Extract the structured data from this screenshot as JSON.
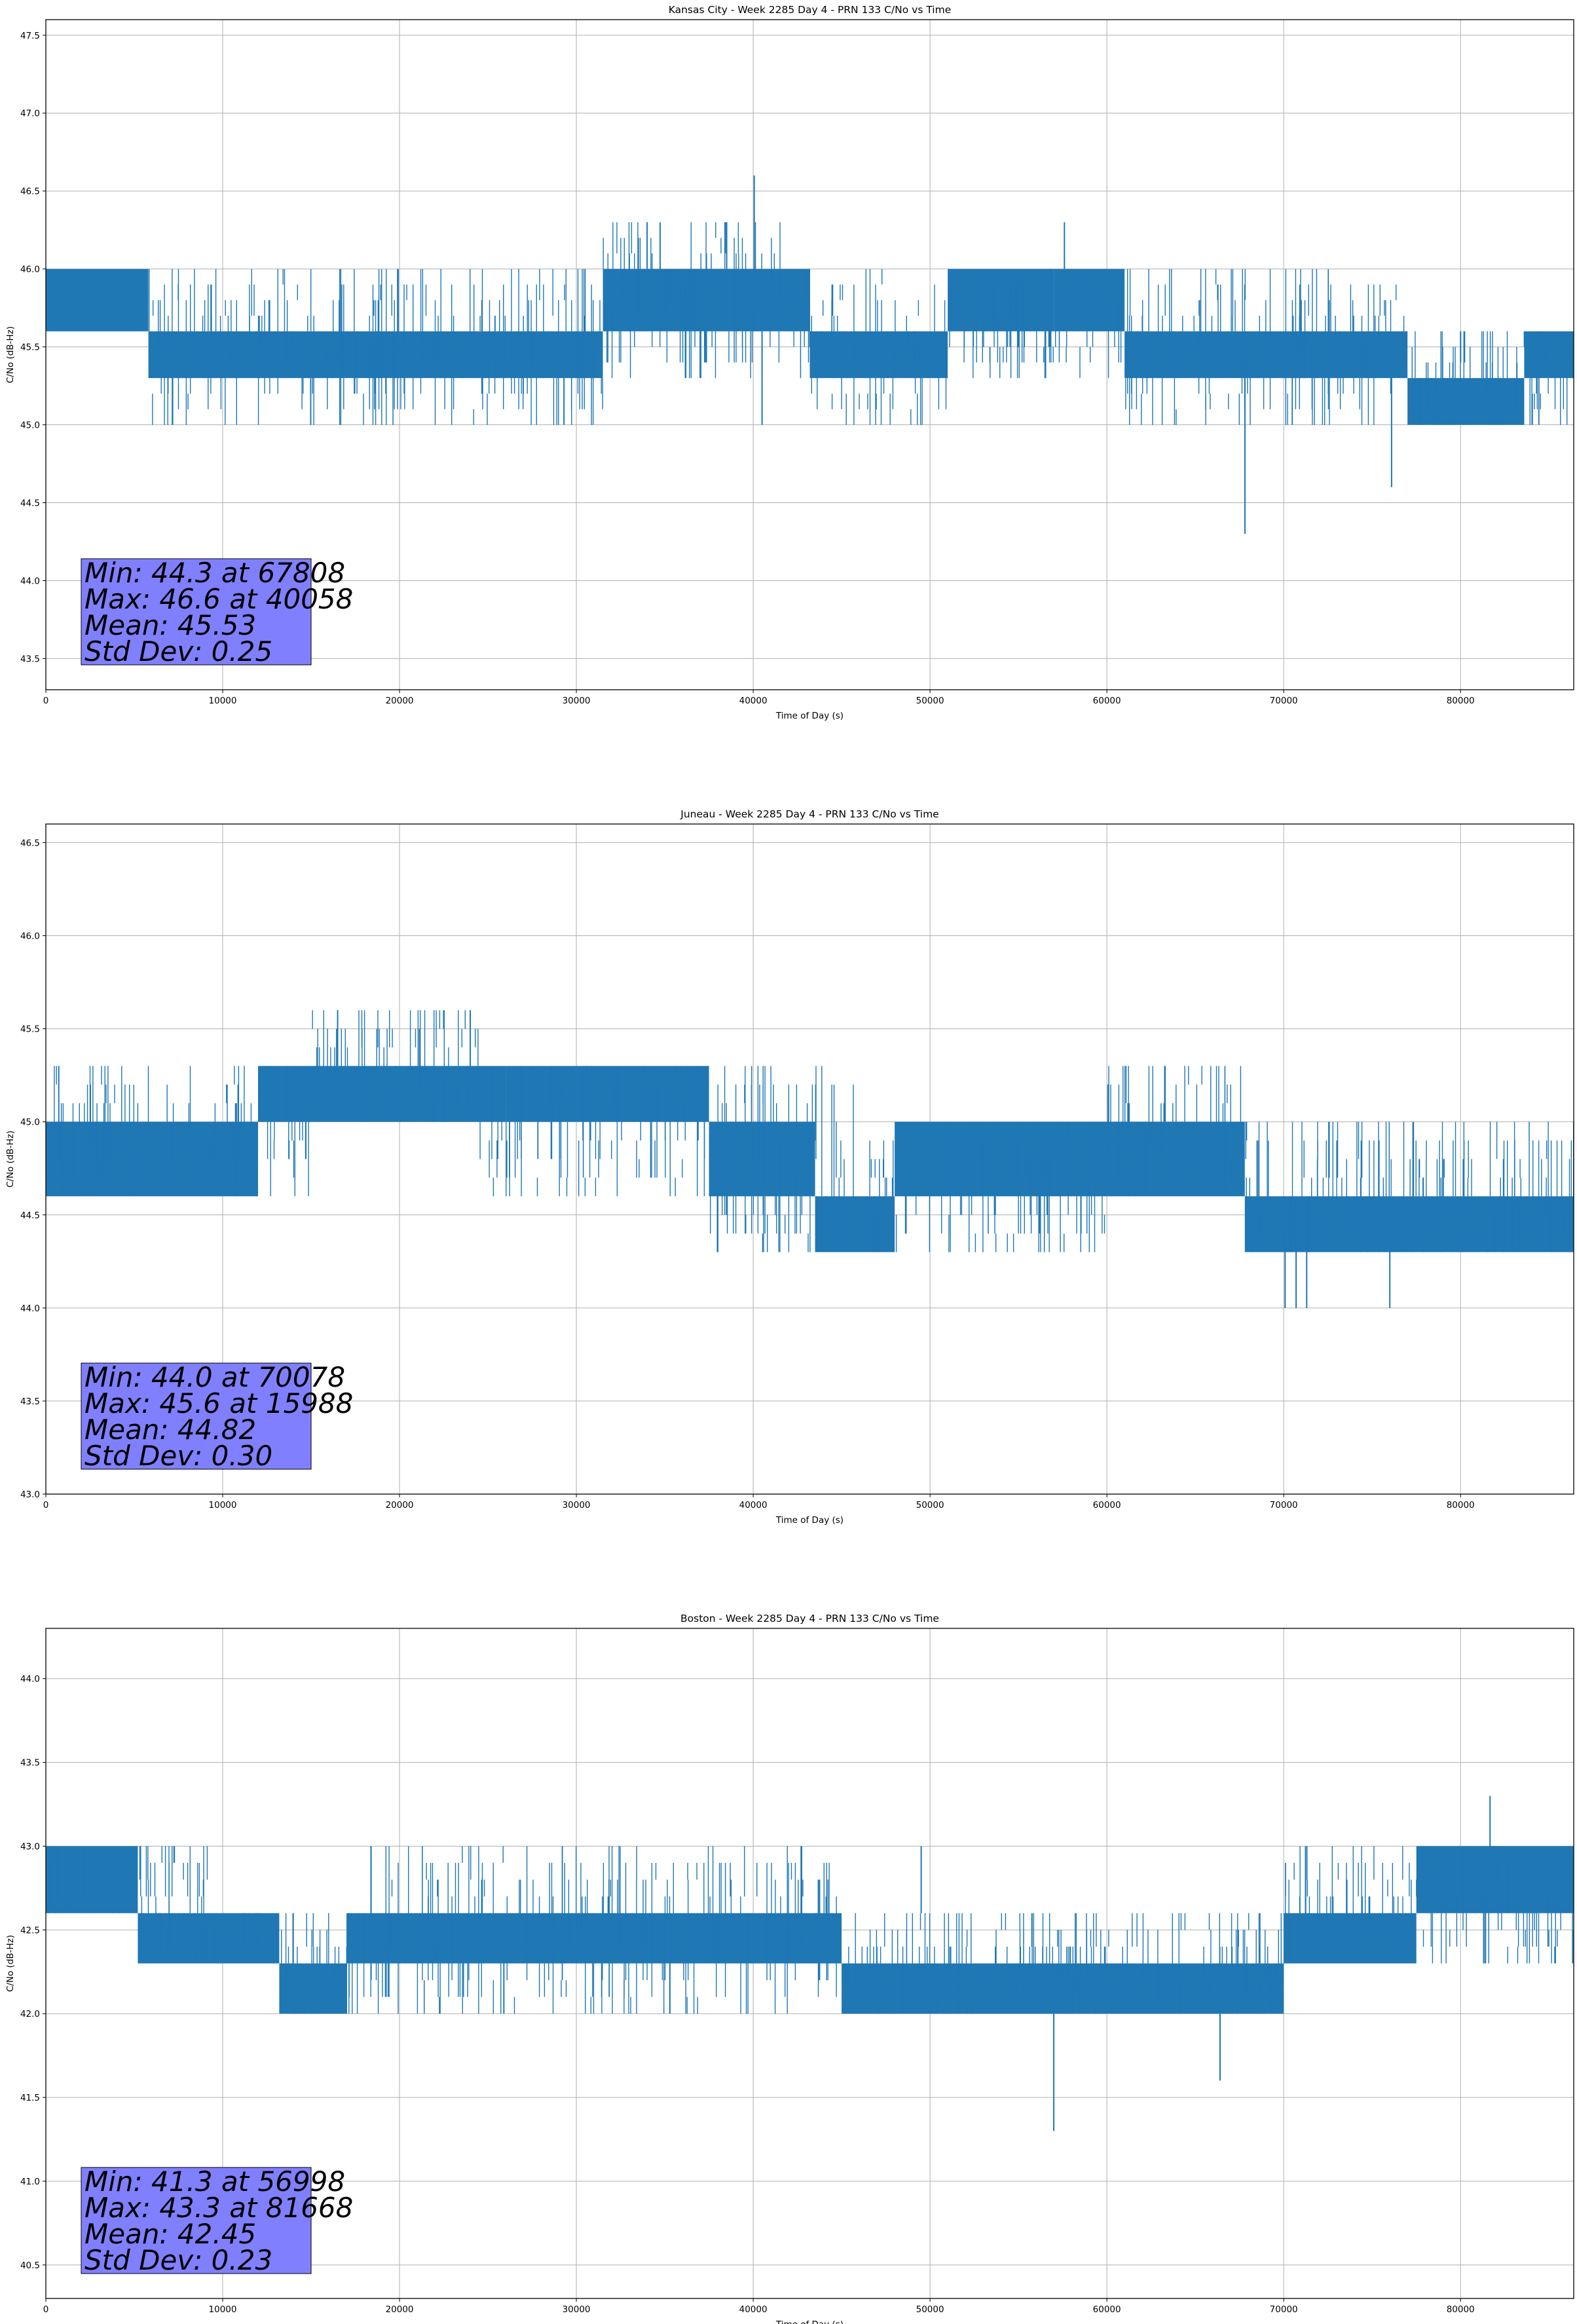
{
  "chart_data": [
    {
      "type": "line",
      "title": "Kansas City - Week 2285 Day 4 - PRN 133 C/No vs Time",
      "xlabel": "Time of Day (s)",
      "ylabel": "C/No (dB-Hz)",
      "xlim": [
        0,
        86400
      ],
      "ylim": [
        43.3,
        47.6
      ],
      "xticks": [
        0,
        10000,
        20000,
        30000,
        40000,
        50000,
        60000,
        70000,
        80000
      ],
      "yticks": [
        43.5,
        44.0,
        44.5,
        45.0,
        45.5,
        46.0,
        46.5,
        47.0,
        47.5
      ],
      "grid": true,
      "color": "#1f77b4",
      "stats": [
        "Min: 44.3 at 67808",
        "Max: 46.6 at 40058",
        "Mean: 45.53",
        "Std Dev: 0.25"
      ],
      "bands": [
        {
          "x": [
            0,
            5800
          ],
          "low": 45.6,
          "high": 46.0
        },
        {
          "x": [
            5800,
            15000
          ],
          "low": 45.3,
          "high": 45.6
        },
        {
          "x": [
            15000,
            31500
          ],
          "low": 45.3,
          "high": 45.6
        },
        {
          "x": [
            31500,
            43200
          ],
          "low": 45.6,
          "high": 46.0
        },
        {
          "x": [
            43200,
            51000
          ],
          "low": 45.3,
          "high": 45.6
        },
        {
          "x": [
            51000,
            57000
          ],
          "low": 45.6,
          "high": 46.0
        },
        {
          "x": [
            57000,
            61000
          ],
          "low": 45.6,
          "high": 46.0
        },
        {
          "x": [
            61000,
            77000
          ],
          "low": 45.3,
          "high": 45.6
        },
        {
          "x": [
            77000,
            83600
          ],
          "low": 45.0,
          "high": 45.3
        },
        {
          "x": [
            83600,
            86400
          ],
          "low": 45.3,
          "high": 45.6
        }
      ],
      "spikes": [
        {
          "x": 40058,
          "low": 45.6,
          "high": 46.6
        },
        {
          "x": 67808,
          "low": 44.3,
          "high": 45.3
        },
        {
          "x": 76100,
          "low": 44.6,
          "high": 45.3
        },
        {
          "x": 40500,
          "low": 45.0,
          "high": 45.6
        },
        {
          "x": 29300,
          "low": 45.0,
          "high": 45.3
        },
        {
          "x": 34000,
          "low": 46.0,
          "high": 46.3
        },
        {
          "x": 38500,
          "low": 46.0,
          "high": 46.3
        },
        {
          "x": 57600,
          "low": 46.0,
          "high": 46.3
        }
      ],
      "scatter": [
        {
          "x": [
            5800,
            15000
          ],
          "low": 45.0,
          "high": 46.0
        },
        {
          "x": [
            15000,
            31500
          ],
          "low": 45.0,
          "high": 46.0
        },
        {
          "x": [
            31500,
            43200
          ],
          "low": 45.3,
          "high": 46.3
        },
        {
          "x": [
            43200,
            51000
          ],
          "low": 45.0,
          "high": 46.0
        },
        {
          "x": [
            51000,
            61000
          ],
          "low": 45.3,
          "high": 46.0
        },
        {
          "x": [
            61000,
            77000
          ],
          "low": 45.0,
          "high": 46.0
        },
        {
          "x": [
            77000,
            86400
          ],
          "low": 45.0,
          "high": 45.6
        }
      ]
    },
    {
      "type": "line",
      "title": "Juneau - Week 2285 Day 4 - PRN 133 C/No vs Time",
      "xlabel": "Time of Day (s)",
      "ylabel": "C/No (dB-Hz)",
      "xlim": [
        0,
        86400
      ],
      "ylim": [
        43.0,
        46.6
      ],
      "xticks": [
        0,
        10000,
        20000,
        30000,
        40000,
        50000,
        60000,
        70000,
        80000
      ],
      "yticks": [
        43.0,
        43.5,
        44.0,
        44.5,
        45.0,
        45.5,
        46.0,
        46.5
      ],
      "grid": true,
      "color": "#1f77b4",
      "stats": [
        "Min: 44.0 at 70078",
        "Max: 45.6 at 15988",
        "Mean: 44.82",
        "Std Dev: 0.30"
      ],
      "bands": [
        {
          "x": [
            0,
            12000
          ],
          "low": 44.6,
          "high": 45.0
        },
        {
          "x": [
            12000,
            26000
          ],
          "low": 45.0,
          "high": 45.3
        },
        {
          "x": [
            26000,
            37500
          ],
          "low": 45.0,
          "high": 45.3
        },
        {
          "x": [
            37500,
            43500
          ],
          "low": 44.6,
          "high": 45.0
        },
        {
          "x": [
            43500,
            48000
          ],
          "low": 44.3,
          "high": 44.6
        },
        {
          "x": [
            48000,
            67800
          ],
          "low": 44.6,
          "high": 45.0
        },
        {
          "x": [
            67800,
            86400
          ],
          "low": 44.3,
          "high": 44.6
        }
      ],
      "spikes": [
        {
          "x": 70078,
          "low": 44.0,
          "high": 44.6
        },
        {
          "x": 70700,
          "low": 44.0,
          "high": 44.6
        },
        {
          "x": 71300,
          "low": 44.0,
          "high": 44.6
        },
        {
          "x": 76000,
          "low": 44.0,
          "high": 44.6
        },
        {
          "x": 16500,
          "low": 45.3,
          "high": 45.6
        },
        {
          "x": 24000,
          "low": 45.3,
          "high": 45.6
        }
      ],
      "scatter": [
        {
          "x": [
            0,
            12000
          ],
          "low": 44.6,
          "high": 45.3
        },
        {
          "x": [
            12000,
            15000
          ],
          "low": 44.6,
          "high": 45.3
        },
        {
          "x": [
            15000,
            24500
          ],
          "low": 45.0,
          "high": 45.6
        },
        {
          "x": [
            24500,
            37500
          ],
          "low": 44.6,
          "high": 45.3
        },
        {
          "x": [
            37500,
            46000
          ],
          "low": 44.3,
          "high": 45.3
        },
        {
          "x": [
            46000,
            60000
          ],
          "low": 44.3,
          "high": 45.0
        },
        {
          "x": [
            60000,
            67800
          ],
          "low": 44.6,
          "high": 45.3
        },
        {
          "x": [
            67800,
            86400
          ],
          "low": 44.3,
          "high": 45.0
        }
      ]
    },
    {
      "type": "line",
      "title": "Boston - Week 2285 Day 4 - PRN 133 C/No vs Time",
      "xlabel": "Time of Day (s)",
      "ylabel": "C/No (dB-Hz)",
      "xlim": [
        0,
        86400
      ],
      "ylim": [
        40.3,
        44.3
      ],
      "xticks": [
        0,
        10000,
        20000,
        30000,
        40000,
        50000,
        60000,
        70000,
        80000
      ],
      "yticks": [
        40.5,
        41.0,
        41.5,
        42.0,
        42.5,
        43.0,
        43.5,
        44.0
      ],
      "grid": true,
      "color": "#1f77b4",
      "stats": [
        "Min: 41.3 at 56998",
        "Max: 43.3 at 81668",
        "Mean: 42.45",
        "Std Dev: 0.23"
      ],
      "bands": [
        {
          "x": [
            0,
            5200
          ],
          "low": 42.6,
          "high": 43.0
        },
        {
          "x": [
            5200,
            13200
          ],
          "low": 42.3,
          "high": 42.6
        },
        {
          "x": [
            13200,
            17000
          ],
          "low": 42.0,
          "high": 42.3
        },
        {
          "x": [
            17000,
            45000
          ],
          "low": 42.3,
          "high": 42.6
        },
        {
          "x": [
            45000,
            70000
          ],
          "low": 42.0,
          "high": 42.3
        },
        {
          "x": [
            70000,
            77500
          ],
          "low": 42.3,
          "high": 42.6
        },
        {
          "x": [
            77500,
            86400
          ],
          "low": 42.6,
          "high": 43.0
        }
      ],
      "spikes": [
        {
          "x": 56998,
          "low": 41.3,
          "high": 42.3
        },
        {
          "x": 66400,
          "low": 41.6,
          "high": 42.3
        },
        {
          "x": 81668,
          "low": 43.0,
          "high": 43.3
        },
        {
          "x": 25900,
          "low": 42.0,
          "high": 42.3
        },
        {
          "x": 49500,
          "low": 42.6,
          "high": 43.0
        }
      ],
      "scatter": [
        {
          "x": [
            0,
            9500
          ],
          "low": 42.6,
          "high": 43.0
        },
        {
          "x": [
            5200,
            13200
          ],
          "low": 42.3,
          "high": 42.6
        },
        {
          "x": [
            13200,
            18000
          ],
          "low": 42.0,
          "high": 42.6
        },
        {
          "x": [
            18000,
            45000
          ],
          "low": 42.0,
          "high": 43.0
        },
        {
          "x": [
            45000,
            70000
          ],
          "low": 42.0,
          "high": 42.6
        },
        {
          "x": [
            70000,
            77500
          ],
          "low": 42.3,
          "high": 43.0
        },
        {
          "x": [
            77500,
            86400
          ],
          "low": 42.3,
          "high": 43.0
        }
      ]
    }
  ]
}
